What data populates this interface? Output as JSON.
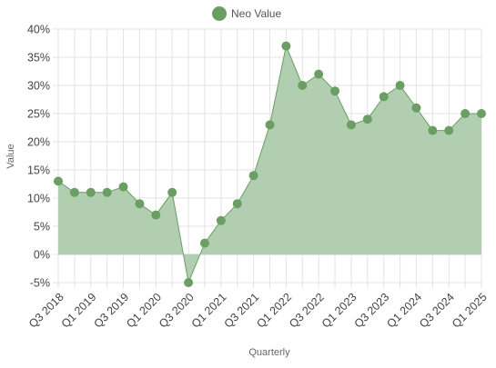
{
  "chart_data": {
    "type": "area",
    "title": "",
    "xlabel": "Quarterly",
    "ylabel": "Value",
    "ylim": [
      -5,
      40
    ],
    "y_tick_step": 5,
    "y_tick_suffix": "%",
    "grid": true,
    "legend_position": "top-center",
    "categories": [
      "Q3 2018",
      "Q4 2018",
      "Q1 2019",
      "Q2 2019",
      "Q3 2019",
      "Q4 2019",
      "Q1 2020",
      "Q2 2020",
      "Q3 2020",
      "Q4 2020",
      "Q1 2021",
      "Q2 2021",
      "Q3 2021",
      "Q4 2021",
      "Q1 2022",
      "Q2 2022",
      "Q3 2022",
      "Q4 2022",
      "Q1 2023",
      "Q2 2023",
      "Q3 2023",
      "Q4 2023",
      "Q1 2024",
      "Q2 2024",
      "Q3 2024",
      "Q4 2024",
      "Q1 2025"
    ],
    "x_tick_labels": [
      "Q3 2018",
      "Q1 2019",
      "Q3 2019",
      "Q1 2020",
      "Q3 2020",
      "Q1 2021",
      "Q3 2021",
      "Q1 2022",
      "Q3 2022",
      "Q1 2023",
      "Q3 2023",
      "Q1 2024",
      "Q3 2024",
      "Q1 2025"
    ],
    "series": [
      {
        "name": "Neo Value",
        "color": "#6a9e62",
        "fill": "#b1cfb0",
        "values": [
          13,
          11,
          11,
          11,
          12,
          9,
          7,
          11,
          -5,
          2,
          6,
          9,
          14,
          23,
          37,
          30,
          32,
          29,
          23,
          24,
          28,
          30,
          26,
          22,
          22,
          25,
          25
        ]
      }
    ]
  }
}
